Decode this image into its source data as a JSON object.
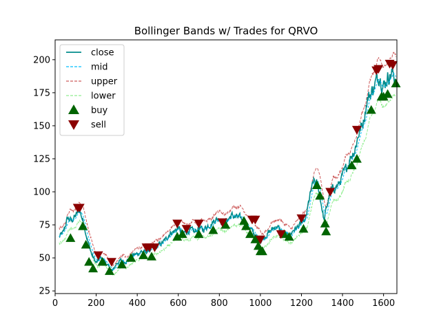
{
  "chart_data": {
    "type": "line",
    "title": "Bollinger Bands w/ Trades for QRVO",
    "xlabel": "",
    "ylabel": "",
    "xlim": [
      0,
      1665
    ],
    "ylim": [
      23,
      215
    ],
    "x_ticks": [
      0,
      200,
      400,
      600,
      800,
      1000,
      1200,
      1400,
      1600
    ],
    "y_ticks": [
      25,
      50,
      75,
      100,
      125,
      150,
      175,
      200
    ],
    "grid": false,
    "legend_position": "top-left",
    "close_anchors": [
      [
        20,
        66
      ],
      [
        40,
        69
      ],
      [
        60,
        80
      ],
      [
        80,
        78
      ],
      [
        100,
        82
      ],
      [
        120,
        86
      ],
      [
        140,
        76
      ],
      [
        160,
        62
      ],
      [
        180,
        52
      ],
      [
        200,
        46
      ],
      [
        220,
        50
      ],
      [
        240,
        48
      ],
      [
        260,
        43
      ],
      [
        280,
        40
      ],
      [
        300,
        46
      ],
      [
        320,
        48
      ],
      [
        340,
        47
      ],
      [
        360,
        49
      ],
      [
        380,
        52
      ],
      [
        400,
        53
      ],
      [
        420,
        55
      ],
      [
        440,
        54
      ],
      [
        460,
        56
      ],
      [
        480,
        57
      ],
      [
        500,
        59
      ],
      [
        520,
        61
      ],
      [
        540,
        64
      ],
      [
        560,
        69
      ],
      [
        580,
        70
      ],
      [
        600,
        73
      ],
      [
        620,
        68
      ],
      [
        640,
        70
      ],
      [
        660,
        71
      ],
      [
        680,
        69
      ],
      [
        700,
        73
      ],
      [
        720,
        71
      ],
      [
        740,
        74
      ],
      [
        760,
        76
      ],
      [
        780,
        79
      ],
      [
        800,
        80
      ],
      [
        820,
        76
      ],
      [
        840,
        79
      ],
      [
        860,
        82
      ],
      [
        880,
        81
      ],
      [
        900,
        80
      ],
      [
        920,
        78
      ],
      [
        940,
        74
      ],
      [
        960,
        70
      ],
      [
        980,
        66
      ],
      [
        1000,
        63
      ],
      [
        1020,
        66
      ],
      [
        1040,
        69
      ],
      [
        1060,
        72
      ],
      [
        1080,
        74
      ],
      [
        1100,
        70
      ],
      [
        1120,
        68
      ],
      [
        1140,
        66
      ],
      [
        1160,
        71
      ],
      [
        1180,
        73
      ],
      [
        1200,
        76
      ],
      [
        1220,
        78
      ],
      [
        1240,
        96
      ],
      [
        1260,
        108
      ],
      [
        1280,
        105
      ],
      [
        1300,
        88
      ],
      [
        1310,
        78
      ],
      [
        1320,
        86
      ],
      [
        1340,
        100
      ],
      [
        1360,
        103
      ],
      [
        1380,
        105
      ],
      [
        1400,
        112
      ],
      [
        1420,
        118
      ],
      [
        1440,
        127
      ],
      [
        1460,
        132
      ],
      [
        1480,
        145
      ],
      [
        1500,
        152
      ],
      [
        1520,
        170
      ],
      [
        1540,
        175
      ],
      [
        1560,
        182
      ],
      [
        1580,
        189
      ],
      [
        1600,
        180
      ],
      [
        1620,
        187
      ],
      [
        1640,
        190
      ],
      [
        1660,
        186
      ]
    ],
    "band_width": 0.085,
    "series": [
      {
        "name": "close",
        "color": "#008b8b",
        "style": "solid"
      },
      {
        "name": "mid",
        "color": "#00bfff",
        "style": "dashed"
      },
      {
        "name": "upper",
        "color": "#cd5c5c",
        "style": "dashed"
      },
      {
        "name": "lower",
        "color": "#90ee90",
        "style": "dashed"
      }
    ],
    "buy_points": [
      [
        75,
        65
      ],
      [
        135,
        74
      ],
      [
        150,
        60
      ],
      [
        165,
        47
      ],
      [
        185,
        42
      ],
      [
        230,
        47
      ],
      [
        265,
        40
      ],
      [
        325,
        45
      ],
      [
        370,
        50
      ],
      [
        430,
        52
      ],
      [
        470,
        51
      ],
      [
        595,
        66
      ],
      [
        620,
        68
      ],
      [
        700,
        68
      ],
      [
        770,
        71
      ],
      [
        830,
        75
      ],
      [
        920,
        78
      ],
      [
        930,
        74
      ],
      [
        950,
        68
      ],
      [
        975,
        64
      ],
      [
        990,
        59
      ],
      [
        1000,
        55
      ],
      [
        1010,
        55
      ],
      [
        1115,
        68
      ],
      [
        1140,
        66
      ],
      [
        1210,
        72
      ],
      [
        1275,
        105
      ],
      [
        1290,
        97
      ],
      [
        1315,
        76
      ],
      [
        1320,
        70
      ],
      [
        1445,
        120
      ],
      [
        1470,
        125
      ],
      [
        1540,
        162
      ],
      [
        1590,
        172
      ],
      [
        1600,
        172
      ],
      [
        1620,
        174
      ],
      [
        1660,
        182
      ]
    ],
    "sell_points": [
      [
        110,
        88
      ],
      [
        120,
        88
      ],
      [
        210,
        52
      ],
      [
        275,
        47
      ],
      [
        445,
        58
      ],
      [
        460,
        58
      ],
      [
        485,
        58
      ],
      [
        595,
        76
      ],
      [
        640,
        72
      ],
      [
        700,
        76
      ],
      [
        815,
        77
      ],
      [
        960,
        79
      ],
      [
        975,
        79
      ],
      [
        1000,
        64
      ],
      [
        1100,
        68
      ],
      [
        1200,
        80
      ],
      [
        1340,
        100
      ],
      [
        1470,
        147
      ],
      [
        1565,
        192
      ],
      [
        1575,
        193
      ],
      [
        1630,
        197
      ],
      [
        1645,
        196
      ]
    ],
    "buy_color": "#006400",
    "sell_color": "#8b0000",
    "legend": [
      {
        "label": "close",
        "kind": "line",
        "color": "#008b8b",
        "style": "solid"
      },
      {
        "label": "mid",
        "kind": "line",
        "color": "#00bfff",
        "style": "dashed"
      },
      {
        "label": "upper",
        "kind": "line",
        "color": "#cd5c5c",
        "style": "dashed"
      },
      {
        "label": "lower",
        "kind": "line",
        "color": "#90ee90",
        "style": "dashed"
      },
      {
        "label": "buy",
        "kind": "marker-up",
        "color": "#006400"
      },
      {
        "label": "sell",
        "kind": "marker-down",
        "color": "#8b0000"
      }
    ]
  }
}
